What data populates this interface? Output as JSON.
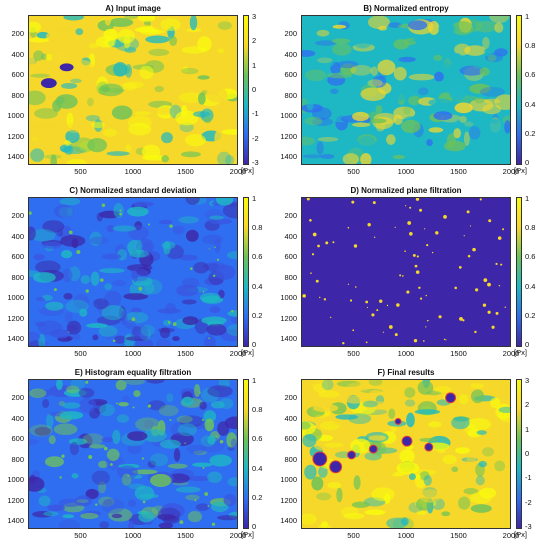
{
  "panels": [
    {
      "title": "A) Input image",
      "colorbar_ticks": [
        "3",
        "2",
        "1",
        "0",
        "-1",
        "-2",
        "-3"
      ],
      "style": "yellow"
    },
    {
      "title": "B) Normalized entropy",
      "colorbar_ticks": [
        "1",
        "0.8",
        "0.6",
        "0.4",
        "0.2",
        "0"
      ],
      "style": "mixed"
    },
    {
      "title": "C) Normalized standard deviation",
      "colorbar_ticks": [
        "1",
        "0.8",
        "0.6",
        "0.4",
        "0.2",
        "0"
      ],
      "style": "blue"
    },
    {
      "title": "D) Normalized plane filtration",
      "colorbar_ticks": [
        "1",
        "0.8",
        "0.6",
        "0.4",
        "0.2",
        "0"
      ],
      "style": "dark"
    },
    {
      "title": "E) Histogram equality filtration",
      "colorbar_ticks": [
        "1",
        "0.8",
        "0.6",
        "0.4",
        "0.2",
        "0"
      ],
      "style": "bluegreen"
    },
    {
      "title": "F) Final results",
      "colorbar_ticks": [
        "3",
        "2",
        "1",
        "0",
        "-1",
        "-2",
        "-3"
      ],
      "style": "yellowdots"
    }
  ],
  "y_ticks": [
    "200",
    "400",
    "600",
    "800",
    "1000",
    "1200",
    "1400"
  ],
  "x_ticks": [
    "500",
    "1000",
    "1500",
    "2000"
  ],
  "unit_label": "[Px]",
  "colors": {
    "dark": "#3e26a8",
    "blue": "#2f6ef0",
    "cyan": "#1eb8c4",
    "green": "#6cc25b",
    "yellow": "#f5d82a",
    "bright": "#f9fb0e"
  }
}
